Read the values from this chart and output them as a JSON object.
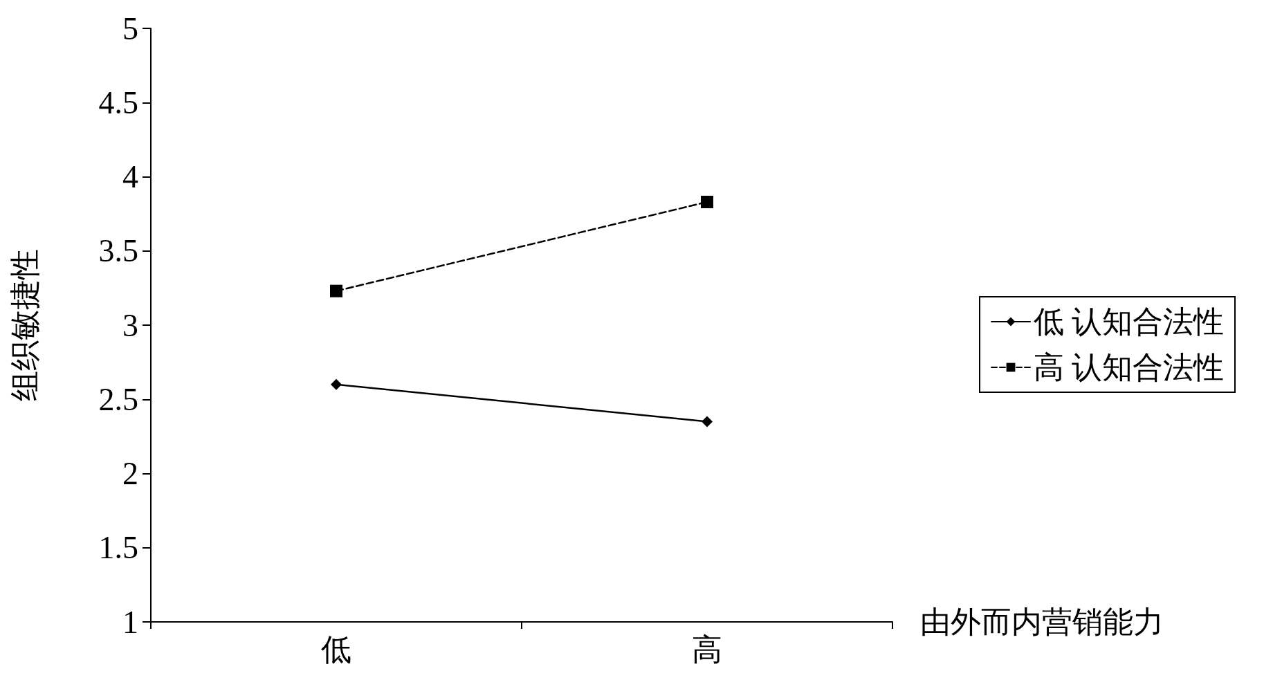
{
  "chart_data": {
    "type": "line",
    "xlabel": "由外而内营销能力",
    "ylabel": "组织敏捷性",
    "categories": [
      "低",
      "高"
    ],
    "series": [
      {
        "name": "低 认知合法性",
        "color": "#000000",
        "values": [
          2.6,
          2.35
        ],
        "marker": "diamond",
        "line_style": "solid"
      },
      {
        "name": "高 认知合法性",
        "color": "#000000",
        "values": [
          3.23,
          3.83
        ],
        "marker": "square",
        "line_style": "dashed"
      }
    ],
    "ylim": [
      1,
      5
    ],
    "yticks": [
      1,
      1.5,
      2,
      2.5,
      3,
      3.5,
      4,
      4.5,
      5
    ],
    "grid": false,
    "legend": "right"
  }
}
